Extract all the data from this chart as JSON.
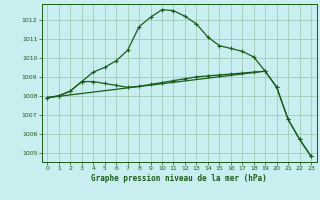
{
  "title": "Graphe pression niveau de la mer (hPa)",
  "background_color": "#c8eef0",
  "grid_color": "#a0ccbb",
  "line_color": "#1a5c1a",
  "xlim": [
    -0.5,
    23.5
  ],
  "ylim": [
    1004.5,
    1012.85
  ],
  "yticks": [
    1005,
    1006,
    1007,
    1008,
    1009,
    1010,
    1011,
    1012
  ],
  "xticks": [
    0,
    1,
    2,
    3,
    4,
    5,
    6,
    7,
    8,
    9,
    10,
    11,
    12,
    13,
    14,
    15,
    16,
    17,
    18,
    19,
    20,
    21,
    22,
    23
  ],
  "line1_x": [
    0,
    1,
    2,
    3,
    4,
    5,
    6,
    7,
    8,
    9,
    10,
    11,
    12,
    13,
    14,
    15,
    16,
    17,
    18,
    19,
    20,
    21,
    22,
    23
  ],
  "line1_y": [
    1007.9,
    1008.0,
    1008.25,
    1008.75,
    1009.25,
    1009.5,
    1009.85,
    1010.4,
    1011.65,
    1012.15,
    1012.55,
    1012.5,
    1012.2,
    1011.8,
    1011.1,
    1010.65,
    1010.5,
    1010.35,
    1010.05,
    1009.3,
    1008.45,
    1006.75,
    1005.7,
    1004.8
  ],
  "line2_x": [
    0,
    1,
    2,
    3,
    4,
    5,
    6,
    7,
    8,
    9,
    10,
    11,
    12,
    13,
    14,
    15,
    16,
    17,
    18,
    19,
    20,
    21,
    22,
    23
  ],
  "line2_y": [
    1007.9,
    1008.0,
    1008.25,
    1008.75,
    1008.75,
    1008.65,
    1008.55,
    1008.45,
    1008.5,
    1008.6,
    1008.7,
    1008.8,
    1008.9,
    1009.0,
    1009.05,
    1009.1,
    1009.15,
    1009.2,
    1009.25,
    1009.3,
    1008.45,
    1006.75,
    1005.7,
    1004.8
  ],
  "line3_x": [
    0,
    19
  ],
  "line3_y": [
    1007.9,
    1009.3
  ]
}
